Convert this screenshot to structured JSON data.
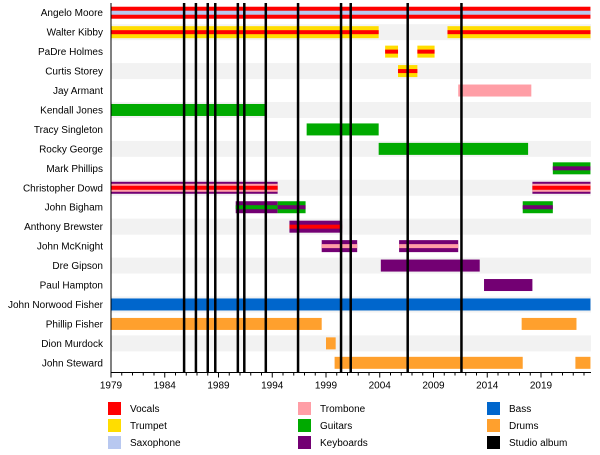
{
  "chart_data": {
    "type": "timeline",
    "title": "",
    "xlabel": "",
    "ylabel": "",
    "xlim": [
      1979,
      2023.6
    ],
    "grid": false,
    "legend_position": "bottom",
    "x_ticks": [
      1979,
      1984,
      1989,
      1994,
      1999,
      2004,
      2009,
      2014,
      2019
    ],
    "role_colors": {
      "Vocals": "#ff0000",
      "Trumpet": "#ffdd00",
      "Saxophone": "#b8c8f0",
      "Trombone": "#ff9ea6",
      "Guitars": "#00aa00",
      "Keyboards": "#730073",
      "Bass": "#0066cc",
      "Drums": "#ffa02d",
      "Studio album": "#000000"
    },
    "legend": [
      {
        "label": "Vocals",
        "color": "#ff0000"
      },
      {
        "label": "Trumpet",
        "color": "#ffdd00"
      },
      {
        "label": "Saxophone",
        "color": "#b8c8f0"
      },
      {
        "label": "Trombone",
        "color": "#ff9ea6"
      },
      {
        "label": "Guitars",
        "color": "#00aa00"
      },
      {
        "label": "Keyboards",
        "color": "#730073"
      },
      {
        "label": "Bass",
        "color": "#0066cc"
      },
      {
        "label": "Drums",
        "color": "#ffa02d"
      },
      {
        "label": "Studio album",
        "color": "#000000"
      }
    ],
    "studio_albums": [
      1985.8,
      1986.9,
      1988.0,
      1988.7,
      1990.8,
      1991.4,
      1993.4,
      1996.4,
      2000.4,
      2001.3,
      2006.6,
      2011.6
    ],
    "members": [
      {
        "name": "Angelo Moore",
        "periods": [
          {
            "start": 1979,
            "end": 2023.6,
            "primary": "Vocals",
            "secondary": "Saxophone"
          }
        ]
      },
      {
        "name": "Walter Kibby",
        "periods": [
          {
            "start": 1979,
            "end": 2003.9,
            "primary": "Trumpet",
            "secondary": "Vocals"
          },
          {
            "start": 2010.3,
            "end": 2023.6,
            "primary": "Trumpet",
            "secondary": "Vocals"
          }
        ]
      },
      {
        "name": "PaDre Holmes",
        "periods": [
          {
            "start": 2004.5,
            "end": 2005.7,
            "primary": "Trumpet",
            "secondary": "Vocals"
          },
          {
            "start": 2007.5,
            "end": 2009.1,
            "primary": "Trumpet",
            "secondary": "Vocals"
          }
        ]
      },
      {
        "name": "Curtis Storey",
        "periods": [
          {
            "start": 2005.7,
            "end": 2007.5,
            "primary": "Trumpet",
            "secondary": "Vocals"
          }
        ]
      },
      {
        "name": "Jay Armant",
        "periods": [
          {
            "start": 2011.3,
            "end": 2018.1,
            "primary": "Trombone",
            "secondary": null
          }
        ]
      },
      {
        "name": "Kendall Jones",
        "periods": [
          {
            "start": 1979,
            "end": 1993.4,
            "primary": "Guitars",
            "secondary": null
          }
        ]
      },
      {
        "name": "Tracy Singleton",
        "periods": [
          {
            "start": 1997.2,
            "end": 2003.9,
            "primary": "Guitars",
            "secondary": null
          }
        ]
      },
      {
        "name": "Rocky George",
        "periods": [
          {
            "start": 2003.9,
            "end": 2017.8,
            "primary": "Guitars",
            "secondary": null
          }
        ]
      },
      {
        "name": "Mark Phillips",
        "periods": [
          {
            "start": 2020.1,
            "end": 2023.6,
            "primary": "Guitars",
            "secondary": "Keyboards"
          }
        ]
      },
      {
        "name": "Christopher Dowd",
        "periods": [
          {
            "start": 1979,
            "end": 1994.5,
            "primary": "Trombone",
            "secondary": "Vocals",
            "outer": "Keyboards"
          },
          {
            "start": 2018.2,
            "end": 2023.6,
            "primary": "Trombone",
            "secondary": "Vocals",
            "outer": "Keyboards"
          }
        ]
      },
      {
        "name": "John Bigham",
        "periods": [
          {
            "start": 1990.6,
            "end": 1994.5,
            "primary": "Keyboards",
            "secondary": "Guitars"
          },
          {
            "start": 1994.5,
            "end": 1997.1,
            "primary": "Guitars",
            "secondary": "Keyboards"
          },
          {
            "start": 2017.3,
            "end": 2020.1,
            "primary": "Guitars",
            "secondary": "Keyboards"
          }
        ]
      },
      {
        "name": "Anthony Brewster",
        "periods": [
          {
            "start": 1995.6,
            "end": 2000.5,
            "primary": "Keyboards",
            "secondary": "Vocals"
          }
        ]
      },
      {
        "name": "John McKnight",
        "periods": [
          {
            "start": 1998.6,
            "end": 2001.9,
            "primary": "Keyboards",
            "secondary": "Trombone"
          },
          {
            "start": 2005.8,
            "end": 2011.3,
            "primary": "Keyboards",
            "secondary": "Trombone"
          }
        ]
      },
      {
        "name": "Dre Gipson",
        "periods": [
          {
            "start": 2004.1,
            "end": 2013.3,
            "primary": "Keyboards",
            "secondary": null
          }
        ]
      },
      {
        "name": "Paul Hampton",
        "periods": [
          {
            "start": 2013.7,
            "end": 2018.2,
            "primary": "Keyboards",
            "secondary": null
          }
        ]
      },
      {
        "name": "John Norwood Fisher",
        "periods": [
          {
            "start": 1979,
            "end": 2023.6,
            "primary": "Bass",
            "secondary": null
          }
        ]
      },
      {
        "name": "Phillip Fisher",
        "periods": [
          {
            "start": 1979,
            "end": 1998.6,
            "primary": "Drums",
            "secondary": null
          },
          {
            "start": 2017.2,
            "end": 2022.3,
            "primary": "Drums",
            "secondary": null
          }
        ]
      },
      {
        "name": "Dion Murdock",
        "periods": [
          {
            "start": 1999.0,
            "end": 1999.9,
            "primary": "Drums",
            "secondary": null
          }
        ]
      },
      {
        "name": "John Steward",
        "periods": [
          {
            "start": 1999.8,
            "end": 2017.3,
            "primary": "Drums",
            "secondary": null
          },
          {
            "start": 2022.2,
            "end": 2023.6,
            "primary": "Drums",
            "secondary": null
          }
        ]
      }
    ]
  }
}
